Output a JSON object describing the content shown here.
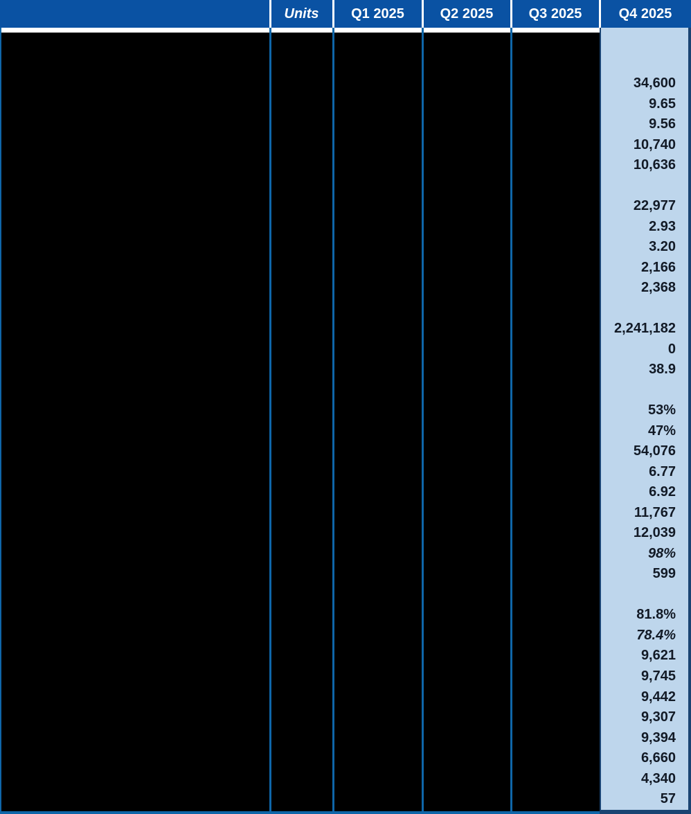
{
  "table": {
    "header": {
      "labels_column": "",
      "columns": [
        {
          "label": "Units",
          "italic": true
        },
        {
          "label": "Q1 2025",
          "italic": false
        },
        {
          "label": "Q2 2025",
          "italic": false
        },
        {
          "label": "Q3 2025",
          "italic": false
        },
        {
          "label": "Q4 2025",
          "italic": false,
          "highlighted": true
        }
      ]
    },
    "q4_column": {
      "rows": [
        {
          "value": "",
          "italic": false
        },
        {
          "value": "",
          "italic": false
        },
        {
          "value": "34,600",
          "italic": false
        },
        {
          "value": "9.65",
          "italic": false
        },
        {
          "value": "9.56",
          "italic": false
        },
        {
          "value": "10,740",
          "italic": false
        },
        {
          "value": "10,636",
          "italic": false
        },
        {
          "value": "",
          "italic": false
        },
        {
          "value": "22,977",
          "italic": false
        },
        {
          "value": "2.93",
          "italic": false
        },
        {
          "value": "3.20",
          "italic": false
        },
        {
          "value": "2,166",
          "italic": false
        },
        {
          "value": "2,368",
          "italic": false
        },
        {
          "value": "",
          "italic": false
        },
        {
          "value": "2,241,182",
          "italic": false
        },
        {
          "value": "0",
          "italic": false
        },
        {
          "value": "38.9",
          "italic": false
        },
        {
          "value": "",
          "italic": false
        },
        {
          "value": "53%",
          "italic": false
        },
        {
          "value": "47%",
          "italic": false
        },
        {
          "value": "54,076",
          "italic": false
        },
        {
          "value": "6.77",
          "italic": false
        },
        {
          "value": "6.92",
          "italic": false
        },
        {
          "value": "11,767",
          "italic": false
        },
        {
          "value": "12,039",
          "italic": false
        },
        {
          "value": "98%",
          "italic": true
        },
        {
          "value": "599",
          "italic": false
        },
        {
          "value": "",
          "italic": false
        },
        {
          "value": "81.8%",
          "italic": false
        },
        {
          "value": "78.4%",
          "italic": true
        },
        {
          "value": "9,621",
          "italic": false
        },
        {
          "value": "9,745",
          "italic": false
        },
        {
          "value": "9,442",
          "italic": false
        },
        {
          "value": "9,307",
          "italic": false
        },
        {
          "value": "9,394",
          "italic": false
        },
        {
          "value": "6,660",
          "italic": false
        },
        {
          "value": "4,340",
          "italic": false
        },
        {
          "value": "57",
          "italic": false
        }
      ]
    },
    "colors": {
      "header_bg": "#0A52A3",
      "header_text": "#FFFFFF",
      "highlight_bg": "#BED6EC",
      "highlight_border": "#1A4472",
      "grid_line": "#0F66A8",
      "value_text": "#121A26",
      "body_bg": "#000000"
    }
  }
}
